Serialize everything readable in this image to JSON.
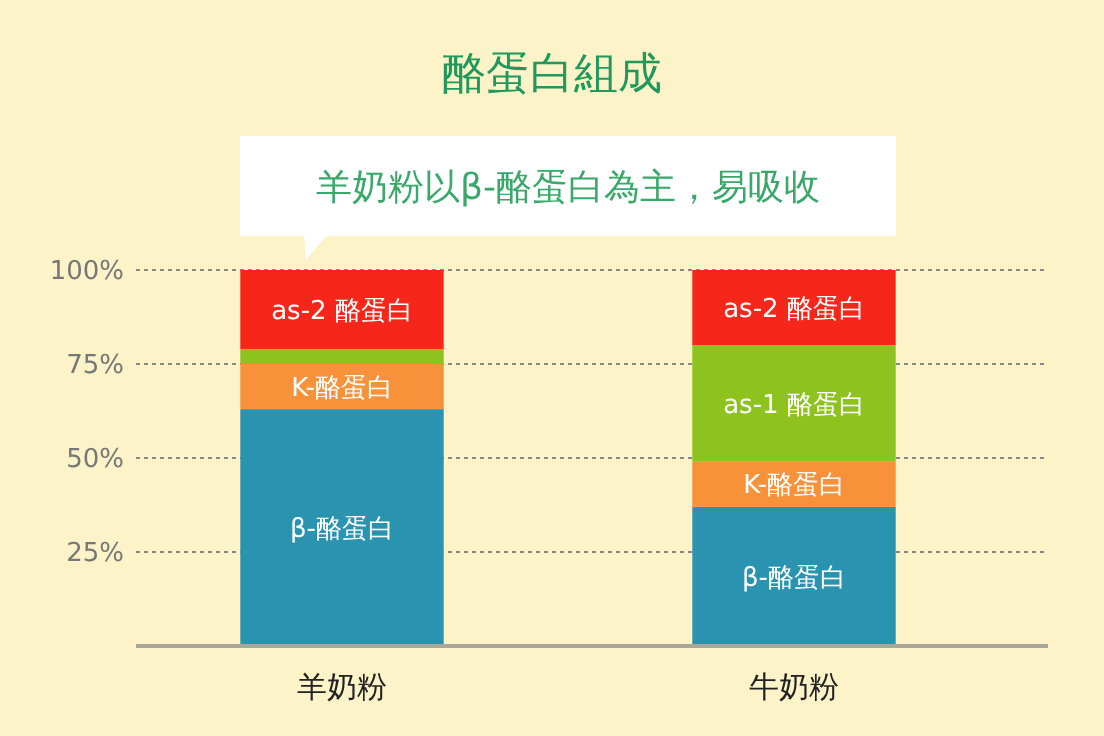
{
  "chart_data": {
    "type": "bar",
    "title": "酪蛋白組成",
    "subtitle": "羊奶粉以β-酪蛋白為主，易吸收",
    "categories": [
      "羊奶粉",
      "牛奶粉"
    ],
    "stacked": true,
    "series": [
      {
        "name": "β-酪蛋白",
        "color": "#2a93b0",
        "values": [
          63,
          37
        ]
      },
      {
        "name": "K-酪蛋白",
        "color": "#f7913a",
        "values": [
          12,
          12
        ]
      },
      {
        "name": "as-1 酪蛋白",
        "color": "#8dc21f",
        "values": [
          4,
          31
        ]
      },
      {
        "name": "as-2 酪蛋白",
        "color": "#f6261a",
        "values": [
          21,
          20
        ]
      }
    ],
    "ylim": [
      0,
      100
    ],
    "yticks": [
      {
        "value": 25,
        "label": "25%"
      },
      {
        "value": 50,
        "label": "50%"
      },
      {
        "value": 75,
        "label": "75%"
      },
      {
        "value": 100,
        "label": "100%"
      }
    ],
    "grid": "y"
  }
}
